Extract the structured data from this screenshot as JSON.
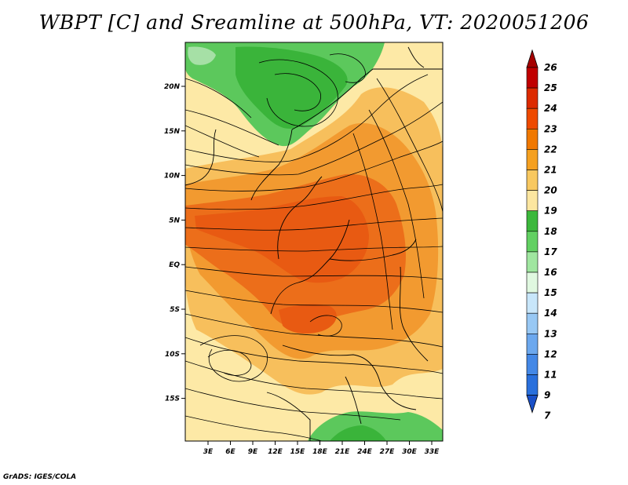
{
  "title": "WBPT [C] and Sreamline at 500hPa, VT: 2020051206",
  "footer": "GrADS: IGES/COLA",
  "map": {
    "lat_labels": [
      "20N",
      "15N",
      "10N",
      "5N",
      "EQ",
      "5S",
      "10S",
      "15S"
    ],
    "lon_labels": [
      "3E",
      "6E",
      "9E",
      "12E",
      "15E",
      "18E",
      "21E",
      "24E",
      "27E",
      "30E",
      "33E"
    ]
  },
  "colorbar": {
    "labels": [
      "26",
      "25",
      "24",
      "23",
      "22",
      "21",
      "20",
      "19",
      "18",
      "17",
      "16",
      "15",
      "14",
      "13",
      "12",
      "11",
      "9",
      "7"
    ],
    "colors": [
      "#a50000",
      "#c00000",
      "#dc2a00",
      "#ee4a00",
      "#f07800",
      "#f5a020",
      "#f8c860",
      "#fce6a0",
      "#3cb83c",
      "#62d062",
      "#a0e6a0",
      "#e0f8e0",
      "#c8e6fa",
      "#98c8f4",
      "#6ca8ee",
      "#4488e6",
      "#2a70dc",
      "#1a50c8"
    ]
  },
  "colors": {
    "green_dark": "#3ab43a",
    "green_mid": "#5cc85c",
    "yellow_light": "#fde9a6",
    "orange_light": "#f7bf5c",
    "orange_mid": "#f29a30",
    "orange_deep": "#ec6e1a",
    "red_orange": "#e85a12"
  }
}
